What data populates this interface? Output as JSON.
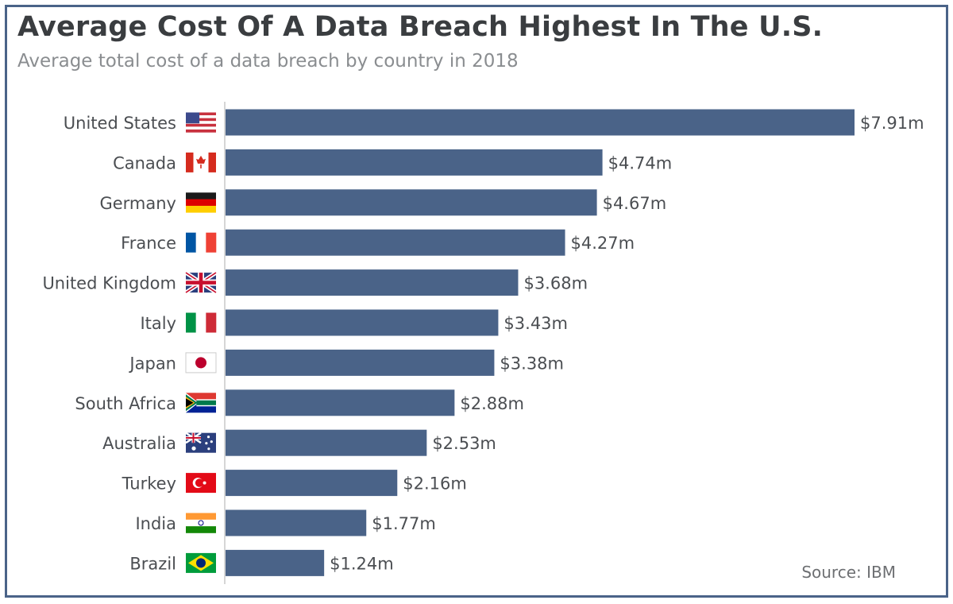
{
  "header": {
    "title": "Average Cost Of A Data Breach Highest In The U.S.",
    "subtitle": "Average total cost of a data breach by country in 2018"
  },
  "footer": {
    "source": "Source: IBM"
  },
  "colors": {
    "bar": "#4a6388",
    "frame": "#4a6388",
    "axis": "#c8c8c8"
  },
  "chart_data": {
    "type": "bar",
    "orientation": "horizontal",
    "title": "Average Cost Of A Data Breach Highest In The U.S.",
    "subtitle": "Average total cost of a data breach by country in 2018",
    "unit": "$m",
    "xlim": [
      0,
      7.91
    ],
    "grid": false,
    "categories": [
      "United States",
      "Canada",
      "Germany",
      "France",
      "United Kingdom",
      "Italy",
      "Japan",
      "South Africa",
      "Australia",
      "Turkey",
      "India",
      "Brazil"
    ],
    "values": [
      7.91,
      4.74,
      4.67,
      4.27,
      3.68,
      3.43,
      3.38,
      2.88,
      2.53,
      2.16,
      1.77,
      1.24
    ],
    "value_labels": [
      "$7.91m",
      "$4.74m",
      "$4.67m",
      "$4.27m",
      "$3.68m",
      "$3.43m",
      "$3.38m",
      "$2.88m",
      "$2.53m",
      "$2.16m",
      "$1.77m",
      "$1.24m"
    ],
    "flags": [
      "us-flag-icon",
      "canada-flag-icon",
      "germany-flag-icon",
      "france-flag-icon",
      "uk-flag-icon",
      "italy-flag-icon",
      "japan-flag-icon",
      "south-africa-flag-icon",
      "australia-flag-icon",
      "turkey-flag-icon",
      "india-flag-icon",
      "brazil-flag-icon"
    ]
  }
}
